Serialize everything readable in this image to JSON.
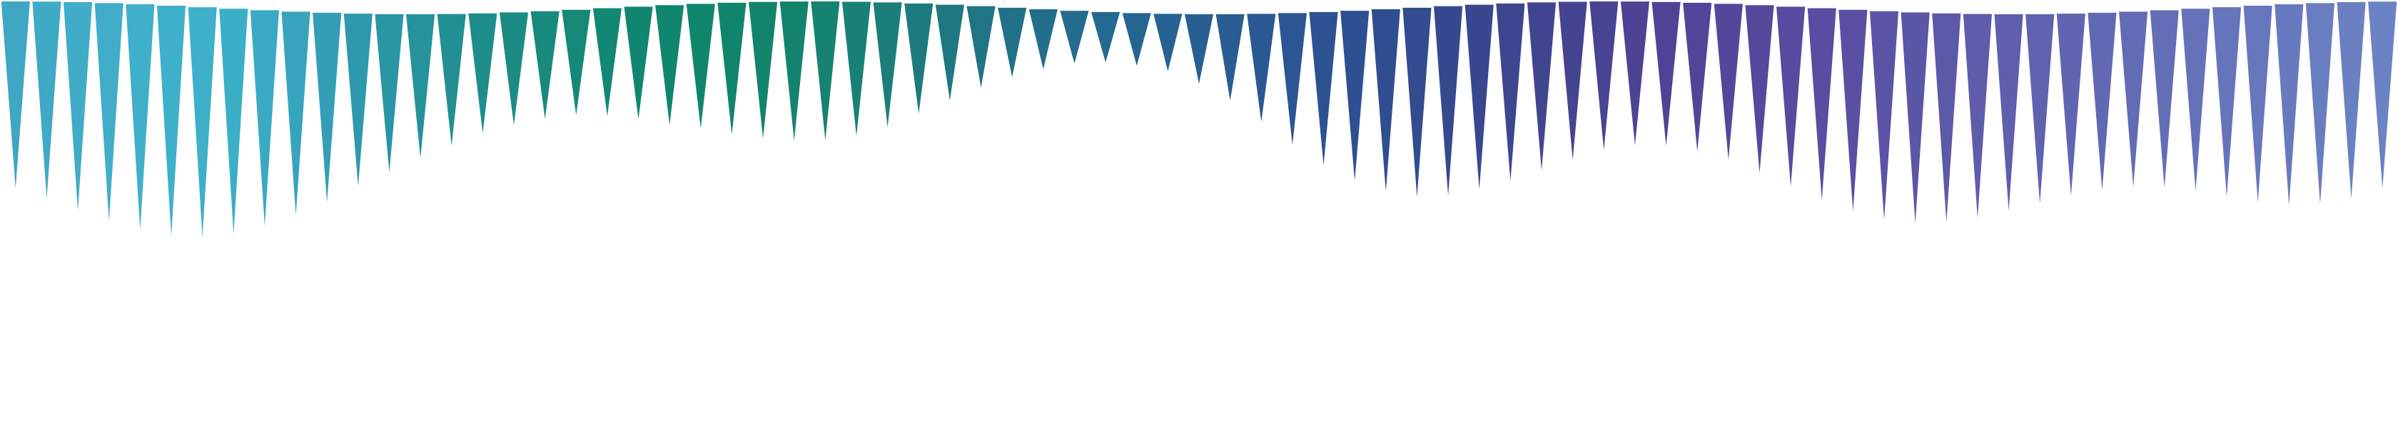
{
  "spikes": [
    {
      "depth": 0.78,
      "color": "#3fa6c4"
    },
    {
      "depth": 0.82,
      "color": "#40a9c6"
    },
    {
      "depth": 0.87,
      "color": "#41acc8"
    },
    {
      "depth": 0.91,
      "color": "#41adc9"
    },
    {
      "depth": 0.94,
      "color": "#40afca"
    },
    {
      "depth": 0.96,
      "color": "#3fb0ca"
    },
    {
      "depth": 0.96,
      "color": "#3eb0ca"
    },
    {
      "depth": 0.94,
      "color": "#3cafc8"
    },
    {
      "depth": 0.9,
      "color": "#3aaac4"
    },
    {
      "depth": 0.85,
      "color": "#37a4be"
    },
    {
      "depth": 0.79,
      "color": "#339eb6"
    },
    {
      "depth": 0.72,
      "color": "#2e99ad"
    },
    {
      "depth": 0.66,
      "color": "#2a95a4"
    },
    {
      "depth": 0.6,
      "color": "#26929b"
    },
    {
      "depth": 0.55,
      "color": "#228f92"
    },
    {
      "depth": 0.5,
      "color": "#1f8d8a"
    },
    {
      "depth": 0.47,
      "color": "#1b8b83"
    },
    {
      "depth": 0.45,
      "color": "#18897d"
    },
    {
      "depth": 0.44,
      "color": "#158878"
    },
    {
      "depth": 0.45,
      "color": "#128774"
    },
    {
      "depth": 0.47,
      "color": "#108671"
    },
    {
      "depth": 0.5,
      "color": "#0f866e"
    },
    {
      "depth": 0.52,
      "color": "#0f856c"
    },
    {
      "depth": 0.55,
      "color": "#10856b"
    },
    {
      "depth": 0.57,
      "color": "#12846c"
    },
    {
      "depth": 0.58,
      "color": "#14836e"
    },
    {
      "depth": 0.58,
      "color": "#168271"
    },
    {
      "depth": 0.56,
      "color": "#198075"
    },
    {
      "depth": 0.52,
      "color": "#1b7e79"
    },
    {
      "depth": 0.46,
      "color": "#1d7b7d"
    },
    {
      "depth": 0.4,
      "color": "#1f7881"
    },
    {
      "depth": 0.34,
      "color": "#207585"
    },
    {
      "depth": 0.29,
      "color": "#217288"
    },
    {
      "depth": 0.25,
      "color": "#226f8b"
    },
    {
      "depth": 0.22,
      "color": "#236c8d"
    },
    {
      "depth": 0.21,
      "color": "#24698f"
    },
    {
      "depth": 0.22,
      "color": "#256690"
    },
    {
      "depth": 0.24,
      "color": "#266391"
    },
    {
      "depth": 0.29,
      "color": "#275f92"
    },
    {
      "depth": 0.36,
      "color": "#285c93"
    },
    {
      "depth": 0.45,
      "color": "#295893"
    },
    {
      "depth": 0.55,
      "color": "#2b5593"
    },
    {
      "depth": 0.64,
      "color": "#2c5292"
    },
    {
      "depth": 0.71,
      "color": "#2e4f91"
    },
    {
      "depth": 0.76,
      "color": "#304d90"
    },
    {
      "depth": 0.79,
      "color": "#334b8f"
    },
    {
      "depth": 0.79,
      "color": "#36498e"
    },
    {
      "depth": 0.77,
      "color": "#39478e"
    },
    {
      "depth": 0.74,
      "color": "#3d468f"
    },
    {
      "depth": 0.7,
      "color": "#414590"
    },
    {
      "depth": 0.66,
      "color": "#454491"
    },
    {
      "depth": 0.62,
      "color": "#494393"
    },
    {
      "depth": 0.6,
      "color": "#4d4395"
    },
    {
      "depth": 0.6,
      "color": "#504397"
    },
    {
      "depth": 0.62,
      "color": "#534499"
    },
    {
      "depth": 0.65,
      "color": "#55469b"
    },
    {
      "depth": 0.7,
      "color": "#57489d"
    },
    {
      "depth": 0.75,
      "color": "#584a9f"
    },
    {
      "depth": 0.8,
      "color": "#594da1"
    },
    {
      "depth": 0.84,
      "color": "#5a50a3"
    },
    {
      "depth": 0.87,
      "color": "#5b53a5"
    },
    {
      "depth": 0.88,
      "color": "#5c56a7"
    },
    {
      "depth": 0.87,
      "color": "#5d59a9"
    },
    {
      "depth": 0.85,
      "color": "#5e5cab"
    },
    {
      "depth": 0.82,
      "color": "#5f5fad"
    },
    {
      "depth": 0.79,
      "color": "#6062af"
    },
    {
      "depth": 0.76,
      "color": "#6165b1"
    },
    {
      "depth": 0.74,
      "color": "#6268b3"
    },
    {
      "depth": 0.73,
      "color": "#636bb5"
    },
    {
      "depth": 0.74,
      "color": "#646eb7"
    },
    {
      "depth": 0.76,
      "color": "#6571b9"
    },
    {
      "depth": 0.79,
      "color": "#6674bb"
    },
    {
      "depth": 0.82,
      "color": "#6777bd"
    },
    {
      "depth": 0.84,
      "color": "#687abf"
    },
    {
      "depth": 0.84,
      "color": "#697dc1"
    },
    {
      "depth": 0.82,
      "color": "#6a80c3"
    },
    {
      "depth": 0.78,
      "color": "#6b83c5"
    }
  ]
}
